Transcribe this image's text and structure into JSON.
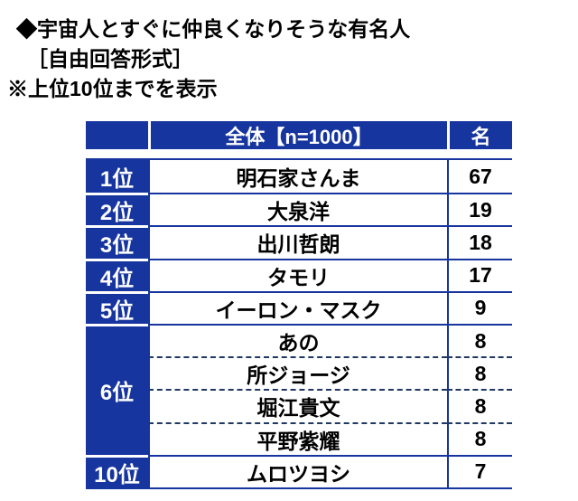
{
  "title": {
    "line1": "◆宇宙人とすぐに仲良くなりそうな有名人",
    "line2": "［自由回答形式］",
    "line3": "※上位10位までを表示"
  },
  "colors": {
    "navy": "#17359e",
    "dash": "#1f3864"
  },
  "table": {
    "header": {
      "rank_label": "",
      "overall": "全体【n=1000】",
      "unit": "名"
    },
    "groups": [
      {
        "rank": "1位",
        "rows": [
          {
            "name": "明石家さんま",
            "count": "67"
          }
        ]
      },
      {
        "rank": "2位",
        "rows": [
          {
            "name": "大泉洋",
            "count": "19"
          }
        ]
      },
      {
        "rank": "3位",
        "rows": [
          {
            "name": "出川哲朗",
            "count": "18"
          }
        ]
      },
      {
        "rank": "4位",
        "rows": [
          {
            "name": "タモリ",
            "count": "17"
          }
        ]
      },
      {
        "rank": "5位",
        "rows": [
          {
            "name": "イーロン・マスク",
            "count": "9"
          }
        ]
      },
      {
        "rank": "6位",
        "rows": [
          {
            "name": "あの",
            "count": "8"
          },
          {
            "name": "所ジョージ",
            "count": "8"
          },
          {
            "name": "堀江貴文",
            "count": "8"
          },
          {
            "name": "平野紫耀",
            "count": "8"
          }
        ]
      },
      {
        "rank": "10位",
        "rows": [
          {
            "name": "ムロツヨシ",
            "count": "7"
          }
        ]
      }
    ]
  },
  "chart_data": {
    "type": "table",
    "title": "◆宇宙人とすぐに仲良くなりそうな有名人",
    "subtitle": "［自由回答形式］ ※上位10位までを表示",
    "columns": [
      "",
      "全体【n=1000】",
      "名"
    ],
    "rows": [
      [
        "1位",
        "明石家さんま",
        67
      ],
      [
        "2位",
        "大泉洋",
        19
      ],
      [
        "3位",
        "出川哲朗",
        18
      ],
      [
        "4位",
        "タモリ",
        17
      ],
      [
        "5位",
        "イーロン・マスク",
        9
      ],
      [
        "6位",
        "あの",
        8
      ],
      [
        "6位",
        "所ジョージ",
        8
      ],
      [
        "6位",
        "堀江貴文",
        8
      ],
      [
        "6位",
        "平野紫耀",
        8
      ],
      [
        "10位",
        "ムロツヨシ",
        7
      ]
    ]
  }
}
